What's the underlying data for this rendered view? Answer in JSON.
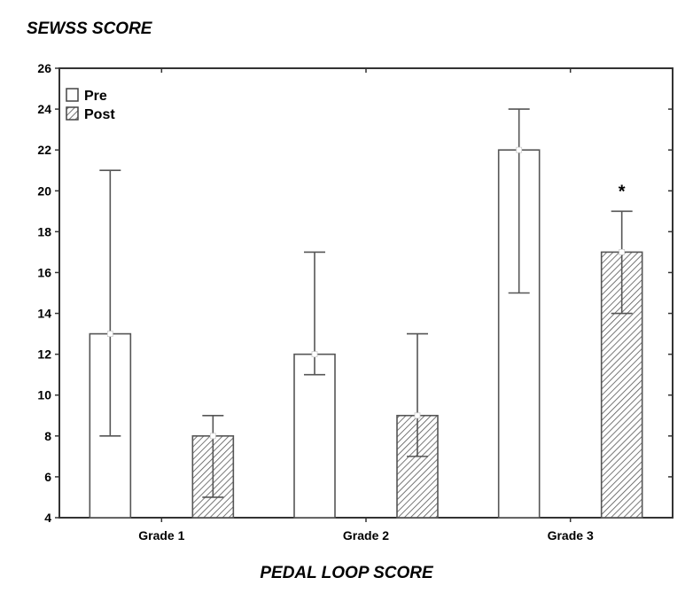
{
  "chart_data": {
    "type": "bar",
    "title": "SEWSS SCORE",
    "ylabel": "SEWSS SCORE",
    "xlabel": "PEDAL LOOP SCORE",
    "categories": [
      "Grade 1",
      "Grade 2",
      "Grade 3"
    ],
    "ylim": [
      4,
      26
    ],
    "yticks": [
      4,
      6,
      8,
      10,
      12,
      14,
      16,
      18,
      20,
      22,
      24,
      26
    ],
    "grid": false,
    "legend_placement": "top-left",
    "series": [
      {
        "name": "Pre",
        "fill": "white",
        "values": [
          13,
          12,
          22
        ],
        "err_low": [
          8,
          11,
          15
        ],
        "err_high": [
          21,
          17,
          24
        ]
      },
      {
        "name": "Post",
        "fill": "hatched",
        "values": [
          8,
          9,
          17
        ],
        "err_low": [
          5,
          7,
          14
        ],
        "err_high": [
          9,
          13,
          19
        ]
      }
    ],
    "annotations": [
      {
        "category": "Grade 3",
        "series": "Post",
        "text": "*"
      }
    ],
    "colors": {
      "axis": "#333333",
      "bar_edge": "#555555",
      "hatch": "#555555"
    }
  }
}
